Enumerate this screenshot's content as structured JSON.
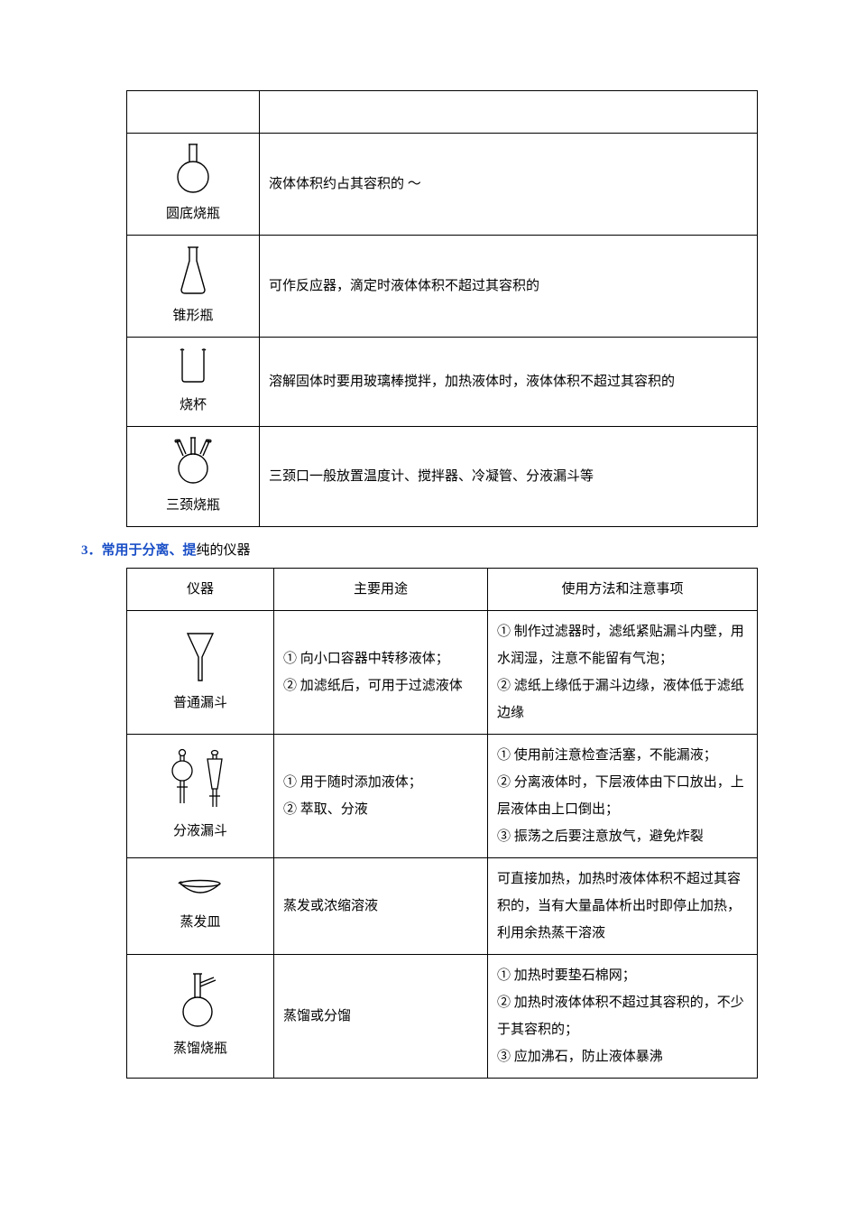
{
  "colors": {
    "text": "#000000",
    "accent_blue": "#1a4fc7",
    "border": "#000000",
    "background": "#ffffff",
    "icon_stroke": "#000000"
  },
  "typography": {
    "body_fontsize_pt": 11,
    "line_height": 2.0,
    "font_family": "SimSun"
  },
  "table1": {
    "type": "table",
    "rows": [
      {
        "icon": "round-bottom-flask",
        "icon_caption": "圆底烧瓶",
        "text": "液体体积约占其容积的 ～"
      },
      {
        "icon": "conical-flask",
        "icon_caption": "锥形瓶",
        "text": "可作反应器，滴定时液体体积不超过其容积的"
      },
      {
        "icon": "beaker",
        "icon_caption": "烧杯",
        "text": "溶解固体时要用玻璃棒搅拌，加热液体时，液体体积不超过其容积的"
      },
      {
        "icon": "three-neck-flask",
        "icon_caption": "三颈烧瓶",
        "text": "三颈口一般放置温度计、搅拌器、冷凝管、分液漏斗等"
      }
    ]
  },
  "section_heading": {
    "number": "3．",
    "blue_part": "常用于分离、提",
    "black_part": "纯的仪器"
  },
  "table2": {
    "type": "table",
    "headers": [
      "仪器",
      "主要用途",
      "使用方法和注意事项"
    ],
    "rows": [
      {
        "icon": "funnel",
        "icon_caption": "普通漏斗",
        "use": "① 向小口容器中转移液体；\n② 加滤纸后，可用于过滤液体",
        "notes": "① 制作过滤器时，滤纸紧贴漏斗内壁，用水润湿，注意不能留有气泡；\n② 滤纸上缘低于漏斗边缘，液体低于滤纸边缘"
      },
      {
        "icon": "separating-funnels",
        "icon_caption": "分液漏斗",
        "use": "① 用于随时添加液体；\n② 萃取、分液",
        "notes": "① 使用前注意检查活塞，不能漏液；\n② 分离液体时，下层液体由下口放出，上层液体由上口倒出；\n③ 振荡之后要注意放气，避免炸裂"
      },
      {
        "icon": "evaporating-dish",
        "icon_caption": "蒸发皿",
        "use": "蒸发或浓缩溶液",
        "notes": "可直接加热，加热时液体体积不超过其容积的，当有大量晶体析出时即停止加热，利用余热蒸干溶液"
      },
      {
        "icon": "distillation-flask",
        "icon_caption": "蒸馏烧瓶",
        "use": "蒸馏或分馏",
        "notes": "① 加热时要垫石棉网；\n② 加热时液体体积不超过其容积的，不少于其容积的；\n③ 应加沸石，防止液体暴沸"
      }
    ]
  }
}
